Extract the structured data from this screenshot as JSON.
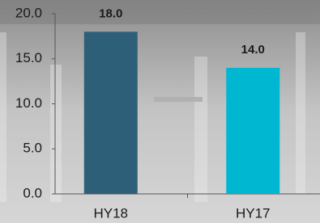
{
  "chart_data": {
    "type": "bar",
    "categories": [
      "HY18",
      "HY17"
    ],
    "values": [
      18,
      14
    ],
    "value_labels": [
      "18.0",
      "14.0"
    ],
    "colors": [
      "#2e5f78",
      "#00b7d2"
    ],
    "ylim": [
      0,
      20
    ],
    "yticks": [
      {
        "value": 0,
        "label": "0.0"
      },
      {
        "value": 5,
        "label": "5.0"
      },
      {
        "value": 10,
        "label": "10.0"
      },
      {
        "value": 15,
        "label": "15.0"
      },
      {
        "value": 20,
        "label": "20.0"
      }
    ]
  }
}
